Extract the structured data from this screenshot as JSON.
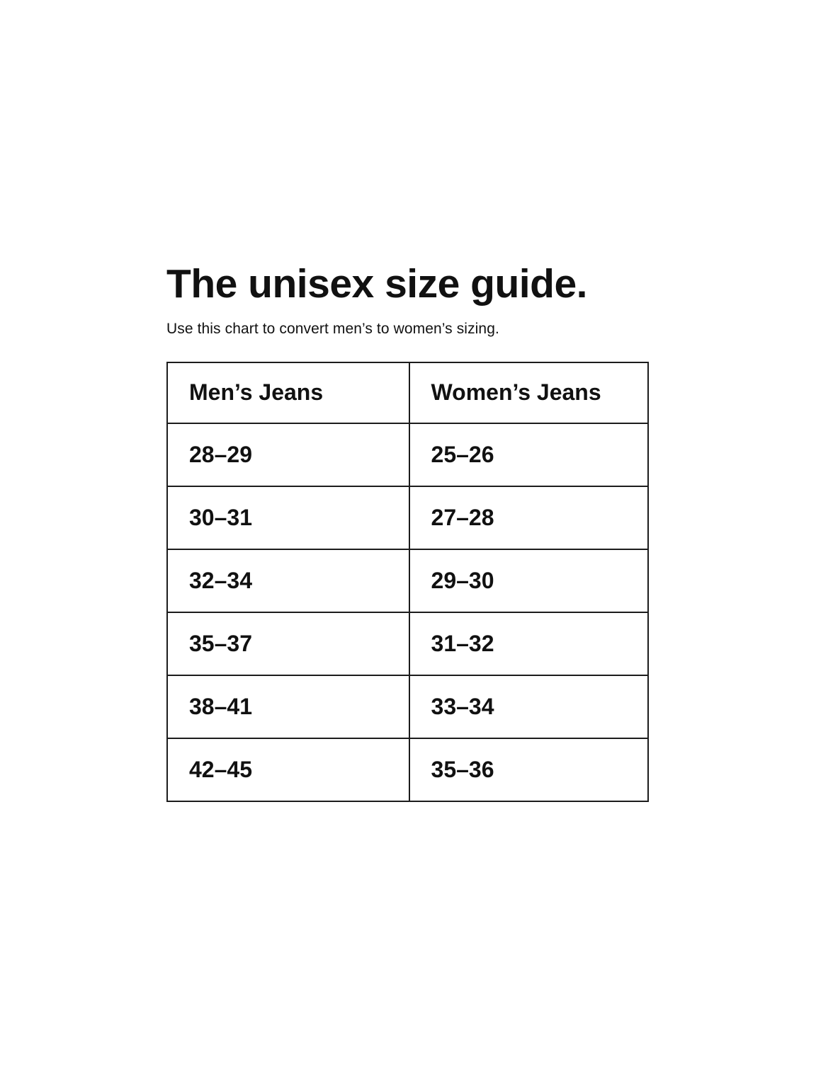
{
  "page": {
    "title": "The unisex size guide.",
    "subtitle": "Use this chart to convert men’s to women’s sizing."
  },
  "table": {
    "columns": [
      "Men’s Jeans",
      "Women’s Jeans"
    ],
    "rows": [
      [
        "28–29",
        "25–26"
      ],
      [
        "30–31",
        "27–28"
      ],
      [
        "32–34",
        "29–30"
      ],
      [
        "35–37",
        "31–32"
      ],
      [
        "38–41",
        "33–34"
      ],
      [
        "42–45",
        "35–36"
      ]
    ]
  },
  "colors": {
    "text": "#111111",
    "border": "#1c1c1c",
    "background": "#ffffff"
  }
}
